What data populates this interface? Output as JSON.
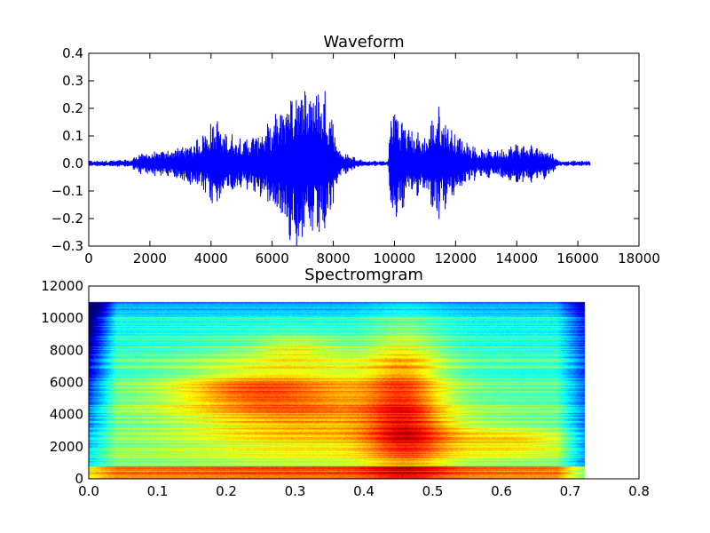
{
  "chart_data": [
    {
      "type": "line",
      "title": "Waveform",
      "xlabel": "",
      "ylabel": "",
      "xlim": [
        0,
        18000
      ],
      "ylim": [
        -0.3,
        0.4
      ],
      "xticks": [
        "0",
        "2000",
        "4000",
        "6000",
        "8000",
        "10000",
        "12000",
        "14000",
        "16000",
        "18000"
      ],
      "yticks": [
        "0.4",
        "0.3",
        "0.2",
        "0.1",
        "0.0",
        "−0.1",
        "−0.2",
        "−0.3"
      ],
      "line_color": "#0000ff",
      "samples": 16400,
      "envelope": [
        [
          0,
          0.01
        ],
        [
          1400,
          0.015
        ],
        [
          1600,
          0.04
        ],
        [
          2500,
          0.05
        ],
        [
          3500,
          0.09
        ],
        [
          4200,
          0.18
        ],
        [
          4400,
          0.12
        ],
        [
          5200,
          0.1
        ],
        [
          6000,
          0.16
        ],
        [
          6600,
          0.3
        ],
        [
          7000,
          0.33
        ],
        [
          7400,
          0.3
        ],
        [
          7800,
          0.28
        ],
        [
          8200,
          0.05
        ],
        [
          9000,
          0.01
        ],
        [
          9800,
          0.01
        ],
        [
          9900,
          0.25
        ],
        [
          10400,
          0.15
        ],
        [
          11000,
          0.1
        ],
        [
          11400,
          0.22
        ],
        [
          12000,
          0.12
        ],
        [
          12800,
          0.05
        ],
        [
          13600,
          0.06
        ],
        [
          14000,
          0.08
        ],
        [
          15000,
          0.06
        ],
        [
          15400,
          0.01
        ],
        [
          16400,
          0.01
        ]
      ],
      "grid": false,
      "legend": "none"
    },
    {
      "type": "heatmap",
      "title": "Spectromgram",
      "xlabel": "",
      "ylabel": "",
      "xlim": [
        0.0,
        0.8
      ],
      "ylim": [
        0,
        12000
      ],
      "xticks": [
        "0.0",
        "0.1",
        "0.2",
        "0.3",
        "0.4",
        "0.5",
        "0.6",
        "0.7",
        "0.8"
      ],
      "yticks": [
        "12000",
        "10000",
        "8000",
        "6000",
        "4000",
        "2000",
        "0"
      ],
      "extent_x": [
        0.0,
        0.72
      ],
      "extent_y": [
        0,
        11025
      ],
      "colormap": "jet",
      "grid": false,
      "legend": "none"
    }
  ]
}
